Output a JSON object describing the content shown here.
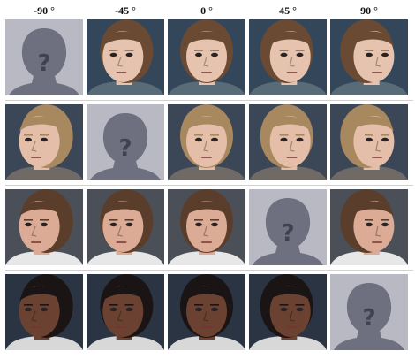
{
  "header": {
    "labels": [
      "-90 °",
      "-45 °",
      "0 °",
      "45 °",
      "90 °"
    ]
  },
  "placeholder": {
    "mark": "?",
    "bg_color": "#b9b9c4",
    "silhouette_color": "#6e6f7f",
    "mark_color": "#404250"
  },
  "rows": [
    {
      "subject": "young woman, brown hair",
      "missing_index": 0,
      "skin": "#e6c3ae",
      "hair": "#6a4a33",
      "bg": "#34475a",
      "shirt": "#5a6b78"
    },
    {
      "subject": "woman, blonde hair",
      "missing_index": 1,
      "skin": "#e4bea8",
      "hair": "#a8885e",
      "bg": "#3b4757",
      "shirt": "#6f6a66"
    },
    {
      "subject": "young man, short brown hair",
      "missing_index": 3,
      "skin": "#dbab95",
      "hair": "#5a3e2b",
      "bg": "#4b4f58",
      "shirt": "#e7e7e7"
    },
    {
      "subject": "man, dark skin, mustache",
      "missing_index": 4,
      "skin": "#6b4232",
      "hair": "#1a1414",
      "bg": "#2b3443",
      "shirt": "#d8d8d8"
    }
  ]
}
